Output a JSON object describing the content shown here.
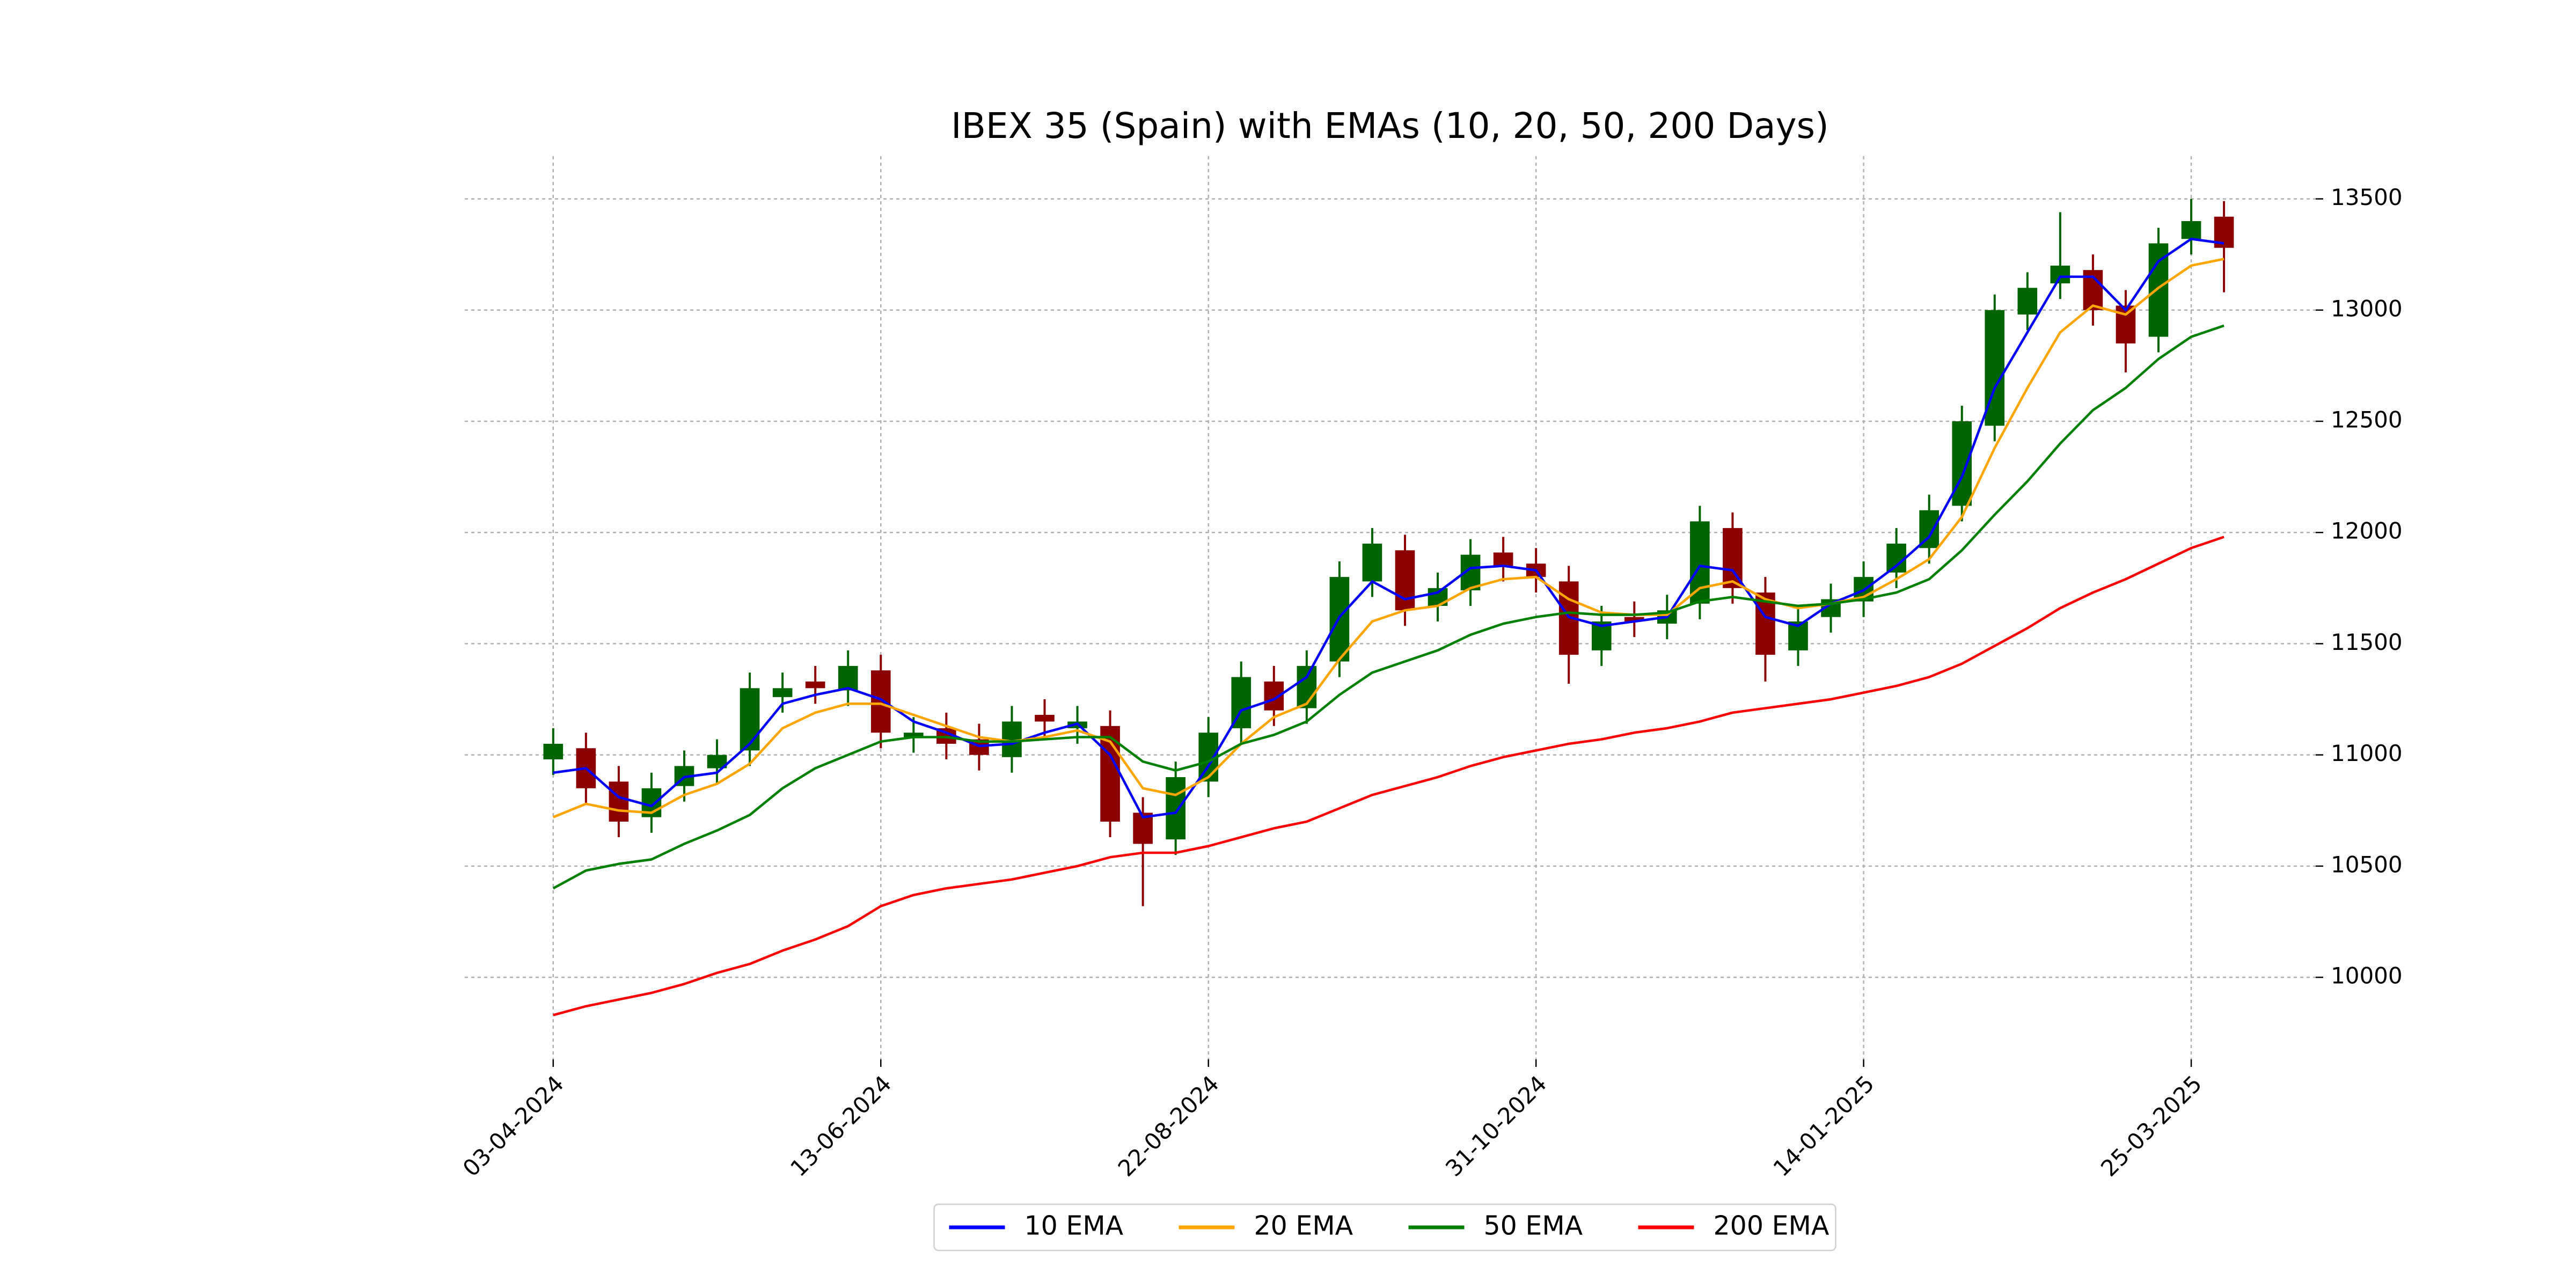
{
  "chart_data": {
    "type": "candlestick",
    "title": "IBEX 35 (Spain) with EMAs (10, 20, 50, 200 Days)",
    "x": [
      0,
      5,
      10,
      15,
      20,
      25,
      30,
      35,
      40,
      45,
      50,
      55,
      60,
      65,
      70,
      75,
      80,
      85,
      90,
      95,
      100,
      105,
      110,
      115,
      120,
      125,
      130,
      135,
      140,
      145,
      150,
      155,
      160,
      165,
      170,
      175,
      180,
      185,
      190,
      195,
      200,
      205,
      210,
      215,
      220,
      225,
      230,
      235,
      240,
      245,
      250,
      255
    ],
    "open": [
      10980,
      11030,
      10880,
      10720,
      10860,
      10940,
      11020,
      11260,
      11330,
      11290,
      11380,
      11080,
      11120,
      11070,
      10990,
      11180,
      11120,
      11130,
      10740,
      10620,
      10880,
      11120,
      11330,
      11210,
      11420,
      11780,
      11920,
      11670,
      11740,
      11910,
      11860,
      11780,
      11470,
      11620,
      11590,
      11680,
      12020,
      11730,
      11470,
      11620,
      11690,
      11820,
      11930,
      12120,
      12480,
      12980,
      13120,
      13180,
      13020,
      12880,
      13320,
      13420
    ],
    "high": [
      11120,
      11100,
      10950,
      10920,
      11020,
      11070,
      11370,
      11370,
      11400,
      11470,
      11450,
      11170,
      11190,
      11140,
      11220,
      11250,
      11220,
      11200,
      10810,
      10970,
      11170,
      11420,
      11400,
      11470,
      11870,
      12020,
      11990,
      11820,
      11970,
      11980,
      11930,
      11850,
      11670,
      11690,
      11720,
      12120,
      12090,
      11800,
      11670,
      11770,
      11870,
      12020,
      12170,
      12570,
      13070,
      13170,
      13440,
      13250,
      13090,
      13370,
      13500,
      13490
    ],
    "low": [
      10910,
      10780,
      10630,
      10650,
      10790,
      10870,
      10950,
      11190,
      11230,
      11220,
      11030,
      11010,
      10980,
      10930,
      10920,
      11080,
      11050,
      10630,
      10320,
      10550,
      10810,
      11050,
      11130,
      11140,
      11350,
      11710,
      11580,
      11600,
      11670,
      11780,
      11730,
      11320,
      11400,
      11530,
      11520,
      11610,
      11680,
      11330,
      11400,
      11550,
      11620,
      11750,
      11860,
      12050,
      12410,
      12910,
      13050,
      12930,
      12720,
      12810,
      13250,
      13080
    ],
    "close": [
      11050,
      10850,
      10700,
      10850,
      10950,
      11000,
      11300,
      11300,
      11300,
      11400,
      11100,
      11100,
      11050,
      11000,
      11150,
      11150,
      11150,
      10700,
      10600,
      10900,
      11100,
      11350,
      11200,
      11400,
      11800,
      11950,
      11650,
      11750,
      11900,
      11850,
      11800,
      11450,
      11600,
      11600,
      11650,
      12050,
      11750,
      11450,
      11600,
      11700,
      11800,
      11950,
      12100,
      12500,
      13000,
      13100,
      13200,
      13000,
      12850,
      13300,
      13400,
      13280
    ],
    "up_color": "#006400",
    "down_color": "#8b0000",
    "series": [
      {
        "name": "10 EMA",
        "color": "#0000ff",
        "values": [
          10920,
          10940,
          10810,
          10770,
          10900,
          10920,
          11050,
          11230,
          11270,
          11300,
          11250,
          11150,
          11100,
          11040,
          11050,
          11100,
          11140,
          11000,
          10720,
          10740,
          10950,
          11200,
          11250,
          11350,
          11620,
          11780,
          11700,
          11730,
          11840,
          11850,
          11830,
          11620,
          11580,
          11600,
          11620,
          11850,
          11830,
          11620,
          11580,
          11680,
          11740,
          11850,
          11980,
          12250,
          12650,
          12900,
          13150,
          13150,
          13000,
          13220,
          13320,
          13300
        ]
      },
      {
        "name": "20 EMA",
        "color": "#ffa500",
        "values": [
          10720,
          10780,
          10750,
          10740,
          10820,
          10870,
          10960,
          11120,
          11190,
          11230,
          11230,
          11180,
          11130,
          11080,
          11060,
          11080,
          11110,
          11060,
          10850,
          10820,
          10900,
          11050,
          11170,
          11230,
          11430,
          11600,
          11650,
          11670,
          11750,
          11790,
          11800,
          11700,
          11640,
          11630,
          11630,
          11750,
          11780,
          11700,
          11660,
          11680,
          11710,
          11790,
          11880,
          12070,
          12380,
          12650,
          12900,
          13020,
          12980,
          13100,
          13200,
          13230
        ]
      },
      {
        "name": "50 EMA",
        "color": "#008000",
        "values": [
          10400,
          10480,
          10510,
          10530,
          10600,
          10660,
          10730,
          10850,
          10940,
          11000,
          11060,
          11080,
          11080,
          11060,
          11060,
          11070,
          11080,
          11080,
          10970,
          10930,
          10970,
          11050,
          11090,
          11150,
          11270,
          11370,
          11420,
          11470,
          11540,
          11590,
          11620,
          11640,
          11630,
          11630,
          11640,
          11690,
          11710,
          11690,
          11670,
          11680,
          11700,
          11730,
          11790,
          11920,
          12080,
          12230,
          12400,
          12550,
          12650,
          12780,
          12880,
          12930
        ]
      },
      {
        "name": "200 EMA",
        "color": "#ff0000",
        "values": [
          9830,
          9870,
          9900,
          9930,
          9970,
          10020,
          10060,
          10120,
          10170,
          10230,
          10320,
          10370,
          10400,
          10420,
          10440,
          10470,
          10500,
          10540,
          10560,
          10560,
          10590,
          10630,
          10670,
          10700,
          10760,
          10820,
          10860,
          10900,
          10950,
          10990,
          11020,
          11050,
          11070,
          11100,
          11120,
          11150,
          11190,
          11210,
          11230,
          11250,
          11280,
          11310,
          11350,
          11410,
          11490,
          11570,
          11660,
          11730,
          11790,
          11860,
          11930,
          11980
        ]
      }
    ],
    "xlim": [
      -13.5,
      269
    ],
    "ylim": [
      9631,
      13692
    ],
    "xticks": [
      {
        "value": 0,
        "label": "03-04-2024"
      },
      {
        "value": 50,
        "label": "13-06-2024"
      },
      {
        "value": 100,
        "label": "22-08-2024"
      },
      {
        "value": 150,
        "label": "31-10-2024"
      },
      {
        "value": 200,
        "label": "14-01-2025"
      },
      {
        "value": 250,
        "label": "25-03-2025"
      }
    ],
    "yticks": [
      10000,
      10500,
      11000,
      11500,
      12000,
      12500,
      13000,
      13500
    ],
    "grid": true,
    "legend": "lower center"
  }
}
